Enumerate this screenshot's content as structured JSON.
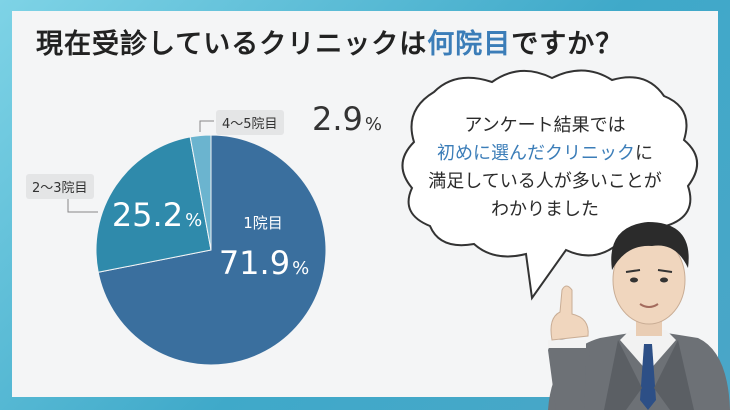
{
  "title": {
    "part1": "現在受診しているクリニックは",
    "highlight": "何院目",
    "part2": "ですか？"
  },
  "chart_data": {
    "type": "pie",
    "slices": [
      {
        "label": "1院目",
        "value": 71.9,
        "color": "#3a6f9e"
      },
      {
        "label": "2〜3院目",
        "value": 25.2,
        "color": "#2f8aab"
      },
      {
        "label": "4〜5院目",
        "value": 2.9,
        "color": "#6bb4cf"
      }
    ],
    "value_unit": "%",
    "display": {
      "s1_num": "71.9",
      "s2_num": "25.2",
      "s3_num": "2.9",
      "unit": "%"
    }
  },
  "bubble": {
    "line1": "アンケート結果では",
    "line2_highlight": "初めに選んだクリニック",
    "line2_rest": "に",
    "line3": "満足している人が多いことが",
    "line4": "わかりました"
  }
}
